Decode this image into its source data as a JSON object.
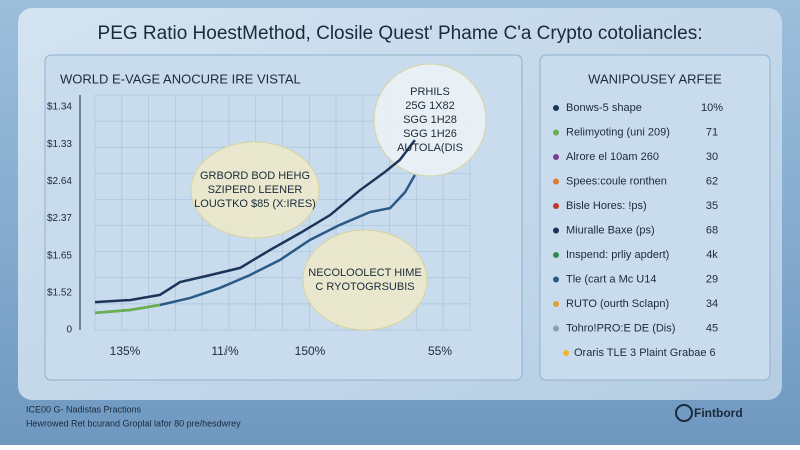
{
  "chart_data": {
    "type": "line",
    "title": "PEG Ratio HoestMethod, Closile Quest' Phame C'a Crypto cotoliancles:",
    "subtitle": "WORLD E-VAGE ANOCURE IRE VISTAL",
    "y_axis_labels": [
      "$1.34",
      "$1.33",
      "$2.64",
      "$2.37",
      "$1.65",
      "$1.52",
      "0"
    ],
    "x_axis_labels": [
      "135%",
      "11ⅈ%",
      "150%",
      "55%"
    ],
    "xlim": [
      0,
      100
    ],
    "ylim": [
      0,
      100
    ],
    "grid": true,
    "series": [
      {
        "color": "#1b3558",
        "x": [
          0,
          9.3,
          17.3,
          22.7,
          30.7,
          38.7,
          46.7,
          54.7,
          62.7,
          70.7,
          77.3,
          81.3,
          85.3
        ],
        "values": [
          12.4,
          13.3,
          15.6,
          21.3,
          24.4,
          27.6,
          35.6,
          43.1,
          51.1,
          62.2,
          70.2,
          75.6,
          84.4
        ]
      },
      {
        "color": "#2a5a86",
        "x": [
          0,
          9.3,
          17.3,
          25.3,
          33.3,
          41.3,
          49.3,
          57.3,
          65.3,
          73.3,
          78.7,
          82.7,
          85.3
        ],
        "values": [
          7.6,
          8.9,
          11.1,
          14.2,
          18.7,
          24.4,
          31.1,
          40,
          46.7,
          52.4,
          54.2,
          61.3,
          68.9
        ]
      },
      {
        "color": "#6ab04c",
        "x": [
          0,
          9.3,
          17.3
        ],
        "values": [
          7.6,
          8.9,
          11.1
        ]
      }
    ],
    "annotations": [
      {
        "lines": [
          "PRHILS",
          "25G 1X82",
          "SGG 1H28",
          "SGG 1H26",
          "AUTOLA(DIS"
        ]
      },
      {
        "lines": [
          "GRBORD BOD HEHG",
          "SZIPERD LEENER",
          "LOUGTKO $85 (X:IRES)"
        ]
      },
      {
        "lines": [
          "NECOLOOLECT HIME",
          "C RYOTOGRSUBIS"
        ]
      }
    ]
  },
  "side_panel": {
    "title": "WANIPOUSEY ARFEE",
    "items": [
      {
        "label": "Bonws-5 shape",
        "value": "10%",
        "color": "#1b3558"
      },
      {
        "label": "Relimyoting (uni 209)",
        "value": 71,
        "color": "#6ab04c"
      },
      {
        "label": "Alrore el 10am 260",
        "value": 30,
        "color": "#7a3e8e"
      },
      {
        "label": "Spees:coule ronthen",
        "value": 62,
        "color": "#e07b2a"
      },
      {
        "label": "Bisle Hores: !ps)",
        "value": 35,
        "color": "#c0392b"
      },
      {
        "label": "Miuralle Baxe (ps)",
        "value": 68,
        "color": "#1b3558"
      },
      {
        "label": "Inspend: prliy apdert)",
        "value": "4k",
        "color": "#2e8b57"
      },
      {
        "label": "Tle (cart a Mc U14",
        "value": 29,
        "color": "#2a5a86"
      },
      {
        "label": "RUTO (ourth Sclapn)",
        "value": 34,
        "color": "#e0a030"
      },
      {
        "label": "Tohro!PRO:E DE (Dis)",
        "value": 45,
        "color": "#8aa0b8"
      }
    ],
    "footer_item": {
      "label": "Oraris TLE 3 Plaint Grabae 6",
      "color": "#f0b429"
    }
  },
  "footer": {
    "lines": [
      "ICE00 G- Nadistas Practions",
      "Hewrowed Ret bcurand Groplal lafor 80 pre/hesdwrey"
    ],
    "brand": "Fintbord"
  }
}
